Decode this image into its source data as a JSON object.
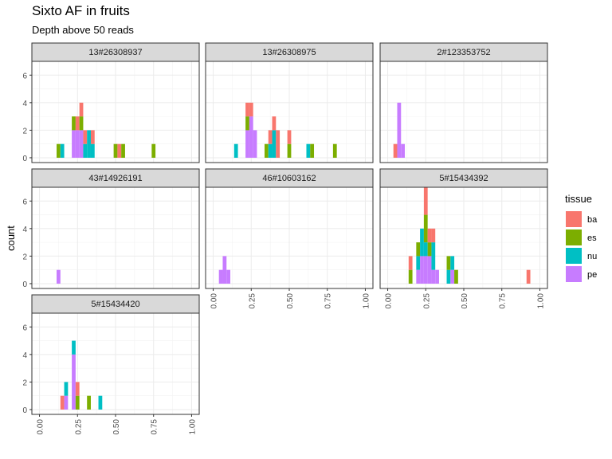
{
  "chart_data": {
    "type": "bar",
    "title": "Sixto AF in fruits",
    "subtitle": "Depth above 50 reads",
    "xlabel": "",
    "ylabel": "count",
    "xlim": [
      0,
      1
    ],
    "ylim": [
      0,
      7
    ],
    "x_ticks": [
      "0.00",
      "0.25",
      "0.50",
      "0.75",
      "1.00"
    ],
    "y_ticks": [
      "0",
      "2",
      "4",
      "6"
    ],
    "grid": true,
    "legend_title": "tissue",
    "legend_position": "right",
    "series": [
      {
        "name": "ba",
        "color": "#F8766D"
      },
      {
        "name": "es",
        "color": "#7CAE00"
      },
      {
        "name": "nu",
        "color": "#00BFC4"
      },
      {
        "name": "pe",
        "color": "#C77CFF"
      }
    ],
    "facets": [
      {
        "label": "13#26308937",
        "bars": [
          {
            "x": 0.125,
            "pe": 0,
            "nu": 0,
            "es": 1,
            "ba": 0
          },
          {
            "x": 0.15,
            "pe": 0,
            "nu": 1,
            "es": 0,
            "ba": 0
          },
          {
            "x": 0.225,
            "pe": 2,
            "nu": 0,
            "es": 1,
            "ba": 0
          },
          {
            "x": 0.25,
            "pe": 2,
            "nu": 0,
            "es": 0,
            "ba": 1
          },
          {
            "x": 0.275,
            "pe": 2,
            "nu": 0,
            "es": 1,
            "ba": 1
          },
          {
            "x": 0.3,
            "pe": 0,
            "nu": 1,
            "es": 0,
            "ba": 1
          },
          {
            "x": 0.325,
            "pe": 0,
            "nu": 2,
            "es": 0,
            "ba": 0
          },
          {
            "x": 0.35,
            "pe": 0,
            "nu": 1,
            "es": 0,
            "ba": 1
          },
          {
            "x": 0.5,
            "pe": 0,
            "nu": 0,
            "es": 1,
            "ba": 0
          },
          {
            "x": 0.525,
            "pe": 0,
            "nu": 0,
            "es": 0,
            "ba": 1
          },
          {
            "x": 0.55,
            "pe": 0,
            "nu": 0,
            "es": 1,
            "ba": 0
          },
          {
            "x": 0.75,
            "pe": 0,
            "nu": 0,
            "es": 1,
            "ba": 0
          }
        ]
      },
      {
        "label": "13#26308975",
        "bars": [
          {
            "x": 0.15,
            "pe": 0,
            "nu": 1,
            "es": 0,
            "ba": 0
          },
          {
            "x": 0.225,
            "pe": 2,
            "nu": 0,
            "es": 1,
            "ba": 1
          },
          {
            "x": 0.25,
            "pe": 3,
            "nu": 0,
            "es": 0,
            "ba": 1
          },
          {
            "x": 0.275,
            "pe": 2,
            "nu": 0,
            "es": 0,
            "ba": 0
          },
          {
            "x": 0.35,
            "pe": 0,
            "nu": 0,
            "es": 1,
            "ba": 0
          },
          {
            "x": 0.375,
            "pe": 0,
            "nu": 1,
            "es": 0,
            "ba": 1
          },
          {
            "x": 0.4,
            "pe": 0,
            "nu": 2,
            "es": 0,
            "ba": 1
          },
          {
            "x": 0.425,
            "pe": 0,
            "nu": 0,
            "es": 0,
            "ba": 2
          },
          {
            "x": 0.5,
            "pe": 0,
            "nu": 0,
            "es": 1,
            "ba": 1
          },
          {
            "x": 0.625,
            "pe": 0,
            "nu": 1,
            "es": 0,
            "ba": 0
          },
          {
            "x": 0.65,
            "pe": 0,
            "nu": 0,
            "es": 1,
            "ba": 0
          },
          {
            "x": 0.8,
            "pe": 0,
            "nu": 0,
            "es": 1,
            "ba": 0
          }
        ]
      },
      {
        "label": "2#123353752",
        "bars": [
          {
            "x": 0.05,
            "pe": 0,
            "nu": 0,
            "es": 0,
            "ba": 1
          },
          {
            "x": 0.075,
            "pe": 4,
            "nu": 0,
            "es": 0,
            "ba": 0
          },
          {
            "x": 0.1,
            "pe": 1,
            "nu": 0,
            "es": 0,
            "ba": 0
          }
        ]
      },
      {
        "label": "43#14926191",
        "bars": [
          {
            "x": 0.125,
            "pe": 1,
            "nu": 0,
            "es": 0,
            "ba": 0
          }
        ]
      },
      {
        "label": "46#10603162",
        "bars": [
          {
            "x": 0.05,
            "pe": 1,
            "nu": 0,
            "es": 0,
            "ba": 0
          },
          {
            "x": 0.075,
            "pe": 2,
            "nu": 0,
            "es": 0,
            "ba": 0
          },
          {
            "x": 0.1,
            "pe": 1,
            "nu": 0,
            "es": 0,
            "ba": 0
          }
        ]
      },
      {
        "label": "5#15434392",
        "bars": [
          {
            "x": 0.15,
            "pe": 0,
            "nu": 0,
            "es": 1,
            "ba": 1
          },
          {
            "x": 0.2,
            "pe": 1,
            "nu": 1,
            "es": 1,
            "ba": 0
          },
          {
            "x": 0.225,
            "pe": 2,
            "nu": 2,
            "es": 0,
            "ba": 0
          },
          {
            "x": 0.25,
            "pe": 2,
            "nu": 1,
            "es": 2,
            "ba": 2
          },
          {
            "x": 0.275,
            "pe": 2,
            "nu": 0,
            "es": 1,
            "ba": 1
          },
          {
            "x": 0.3,
            "pe": 1,
            "nu": 2,
            "es": 0,
            "ba": 1
          },
          {
            "x": 0.325,
            "pe": 1,
            "nu": 0,
            "es": 0,
            "ba": 0
          },
          {
            "x": 0.4,
            "pe": 0,
            "nu": 1,
            "es": 1,
            "ba": 0
          },
          {
            "x": 0.425,
            "pe": 1,
            "nu": 1,
            "es": 0,
            "ba": 0
          },
          {
            "x": 0.45,
            "pe": 0,
            "nu": 0,
            "es": 1,
            "ba": 0
          },
          {
            "x": 0.925,
            "pe": 0,
            "nu": 0,
            "es": 0,
            "ba": 1
          }
        ]
      },
      {
        "label": "5#15434420",
        "bars": [
          {
            "x": 0.15,
            "pe": 0,
            "nu": 0,
            "es": 0,
            "ba": 1
          },
          {
            "x": 0.175,
            "pe": 1,
            "nu": 1,
            "es": 0,
            "ba": 0
          },
          {
            "x": 0.225,
            "pe": 4,
            "nu": 1,
            "es": 0,
            "ba": 0
          },
          {
            "x": 0.25,
            "pe": 0,
            "nu": 0,
            "es": 1,
            "ba": 1
          },
          {
            "x": 0.325,
            "pe": 0,
            "nu": 0,
            "es": 1,
            "ba": 0
          },
          {
            "x": 0.4,
            "pe": 0,
            "nu": 1,
            "es": 0,
            "ba": 0
          }
        ]
      }
    ]
  }
}
